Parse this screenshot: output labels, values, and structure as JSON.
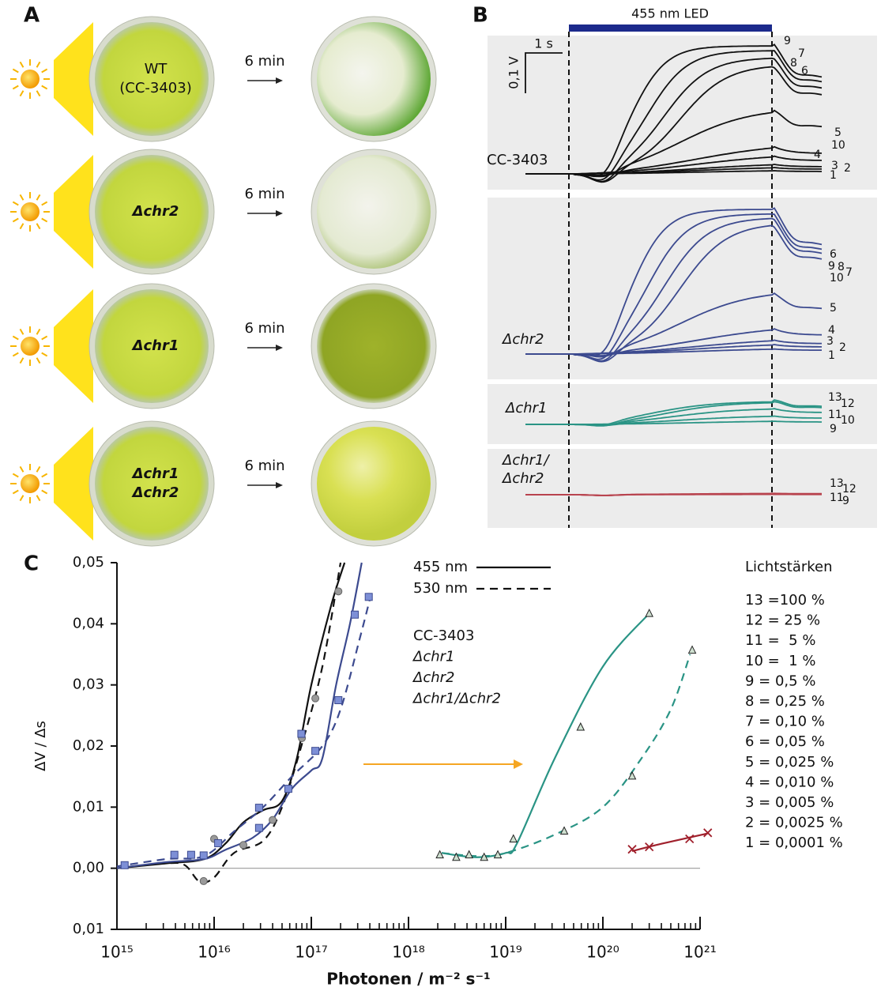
{
  "panel_a": {
    "label": "A",
    "rows": [
      {
        "strain": [
          "WT",
          "(CC-3403)"
        ],
        "color": "#111111",
        "italic": false,
        "duration": "6 min"
      },
      {
        "strain": [
          "Δchr2"
        ],
        "color": "#2b3f85",
        "italic": true,
        "duration": "6 min"
      },
      {
        "strain": [
          "Δchr1"
        ],
        "color": "#1f7f75",
        "italic": true,
        "duration": "6 min"
      },
      {
        "strain": [
          "Δchr1",
          "Δchr2"
        ],
        "color": "#8e1b2c",
        "italic": true,
        "duration": "6 min"
      }
    ]
  },
  "panel_b": {
    "label": "B",
    "stimulus": "455 nm LED",
    "scale_time": "1 s",
    "scale_voltage": "0,1 V",
    "groups": [
      {
        "name": [
          "CC-3403"
        ],
        "color": "#111111",
        "trace_labels": [
          "9",
          "7",
          "8",
          "6",
          "5",
          "10",
          "4",
          "3",
          "2",
          "1"
        ]
      },
      {
        "name": [
          "Δchr2"
        ],
        "color": "#3c4a8f",
        "trace_labels": [
          "6",
          "9",
          "8",
          "7",
          "10",
          "5",
          "4",
          "3",
          "2",
          "1"
        ]
      },
      {
        "name": [
          "Δchr1"
        ],
        "color": "#2a9485",
        "trace_labels": [
          "13",
          "12",
          "11",
          "10",
          "9"
        ]
      },
      {
        "name": [
          "Δchr1/",
          "Δchr2"
        ],
        "color": "#b8434e",
        "trace_labels": [
          "13",
          "12",
          "11",
          "9"
        ]
      }
    ]
  },
  "panel_c_label": "C",
  "chart_data": {
    "type": "scatter",
    "x_label": "Photonen / m⁻² s⁻¹",
    "y_label": "ΔV / Δs",
    "x_scale": "log",
    "xlim": [
      1000000000000000.0,
      1e+21
    ],
    "ylim": [
      -0.01,
      0.05
    ],
    "xticks": [
      {
        "value": 1000000000000000.0,
        "label": "10¹⁵"
      },
      {
        "value": 1e+16,
        "label": "10¹⁶"
      },
      {
        "value": 1e+17,
        "label": "10¹⁷"
      },
      {
        "value": 1e+18,
        "label": "10¹⁸"
      },
      {
        "value": 1e+19,
        "label": "10¹⁹"
      },
      {
        "value": 1e+20,
        "label": "10²⁰"
      },
      {
        "value": 1e+21,
        "label": "10²¹"
      }
    ],
    "yticks": [
      {
        "value": -0.01,
        "label": "0,01"
      },
      {
        "value": 0,
        "label": "0,00"
      },
      {
        "value": 0.01,
        "label": "0,01"
      },
      {
        "value": 0.02,
        "label": "0,02"
      },
      {
        "value": 0.03,
        "label": "0,03"
      },
      {
        "value": 0.04,
        "label": "0,04"
      },
      {
        "value": 0.05,
        "label": "0,05"
      }
    ],
    "zero_line": true,
    "line_legend": [
      {
        "name": "455 nm",
        "dash": false
      },
      {
        "name": "530 nm",
        "dash": true
      }
    ],
    "strain_legend": [
      {
        "name": "CC-3403",
        "color": "#222222"
      },
      {
        "name": "Δchr1",
        "color": "#2a9485"
      },
      {
        "name": "Δchr2",
        "color": "#3c4a8f"
      },
      {
        "name": "Δchr1/Δchr2",
        "color": "#a0202c"
      }
    ],
    "series": [
      {
        "marker": "circle",
        "color": "#9a9a9a",
        "x": [
          7800000000000000.0,
          1e+16,
          2e+16,
          4e+16,
          8e+16,
          1.1e+17,
          1.9e+17
        ],
        "values": [
          -0.0021,
          0.0048,
          0.0038,
          0.0079,
          0.0213,
          0.0278,
          0.0453
        ]
      },
      {
        "marker": "square",
        "color": "#7d8fd6",
        "x": [
          1200000000000000.0,
          3900000000000000.0,
          5800000000000000.0,
          7800000000000000.0,
          1.1e+16,
          2.9e+16,
          2.9e+16,
          5.8e+16,
          7.9e+16,
          1.1e+17,
          1.9e+17,
          2.8e+17,
          3.9e+17
        ],
        "values": [
          0.0005,
          0.0022,
          0.0022,
          0.0021,
          0.0041,
          0.0099,
          0.0066,
          0.013,
          0.022,
          0.0192,
          0.0275,
          0.0415,
          0.0444
        ]
      },
      {
        "marker": "triangle",
        "color": "#cfe0d0",
        "x": [
          2.1e+18,
          3.1e+18,
          4.2e+18,
          6e+18,
          8.3e+18,
          1.2e+19,
          4e+19,
          5.9e+19,
          2e+20,
          3e+20,
          8.3e+20
        ],
        "values": [
          0.0022,
          0.0018,
          0.0022,
          0.0018,
          0.0022,
          0.0048,
          0.0061,
          0.0231,
          0.0151,
          0.0417,
          0.0357
        ]
      },
      {
        "marker": "cross",
        "color": "#a0202c",
        "x": [
          2e+20,
          3e+20,
          7.8e+20,
          1.2e+21
        ],
        "values": [
          0.0031,
          0.0035,
          0.0048,
          0.0058
        ]
      }
    ],
    "curves": [
      {
        "color": "#111111",
        "dash": false,
        "x": [
          1000000000000000.0,
          3200000000000000.0,
          7900000000000000.0,
          1.3e+16,
          2e+16,
          3.2e+16,
          5e+16,
          7.1e+16,
          1e+17,
          1.6e+17,
          2.2e+17
        ],
        "values": [
          0,
          0.0008,
          0.0015,
          0.004,
          0.0075,
          0.0095,
          0.011,
          0.018,
          0.03,
          0.043,
          0.05
        ]
      },
      {
        "color": "#111111",
        "dash": true,
        "x": [
          1000000000000000.0,
          3200000000000000.0,
          5000000000000000.0,
          7100000000000000.0,
          1e+16,
          1.6e+16,
          3.2e+16,
          5e+16,
          7.9e+16,
          1.3e+17,
          2e+17
        ],
        "values": [
          0,
          0.0008,
          0.0005,
          -0.0022,
          -0.0015,
          0.0025,
          0.0045,
          0.01,
          0.02,
          0.033,
          0.05
        ]
      },
      {
        "color": "#3c4a8f",
        "dash": false,
        "x": [
          1000000000000000.0,
          3200000000000000.0,
          7900000000000000.0,
          1.3e+16,
          2.5e+16,
          4e+16,
          6.3e+16,
          1e+17,
          1.3e+17,
          1.8e+17,
          2.5e+17,
          3.3e+17
        ],
        "values": [
          0,
          0.001,
          0.0015,
          0.003,
          0.005,
          0.008,
          0.013,
          0.016,
          0.018,
          0.03,
          0.04,
          0.05
        ]
      },
      {
        "color": "#3c4a8f",
        "dash": true,
        "x": [
          1000000000000000.0,
          3200000000000000.0,
          7900000000000000.0,
          1.6e+16,
          3.2e+16,
          6.3e+16,
          1.3e+17,
          2e+17,
          3.2e+17,
          4e+17
        ],
        "values": [
          0.0003,
          0.0015,
          0.002,
          0.006,
          0.01,
          0.015,
          0.02,
          0.026,
          0.038,
          0.044
        ]
      },
      {
        "color": "#2a9485",
        "dash": false,
        "x": [
          2.2e+18,
          5e+18,
          1e+19,
          1.3e+19,
          3.2e+19,
          1e+20,
          3e+20
        ],
        "values": [
          0.0025,
          0.0018,
          0.0025,
          0.004,
          0.018,
          0.033,
          0.0417
        ]
      },
      {
        "color": "#2a9485",
        "dash": true,
        "x": [
          2.2e+18,
          5e+18,
          1e+19,
          3.2e+19,
          1e+20,
          2.5e+20,
          5e+20,
          7.9e+20
        ],
        "values": [
          0.0025,
          0.002,
          0.0025,
          0.0055,
          0.01,
          0.018,
          0.026,
          0.035
        ]
      },
      {
        "color": "#a0202c",
        "dash": false,
        "x": [
          2e+20,
          4e+20,
          1.2e+21
        ],
        "values": [
          0.0028,
          0.004,
          0.0057
        ]
      }
    ]
  },
  "intensity_legend": {
    "title": "Lichtstärken",
    "items": [
      "13 =100 %",
      "12 = 25 %",
      "11 =  5 %",
      "10 =  1 %",
      "9 = 0,5 %",
      "8 = 0,25 %",
      "7 = 0,10 %",
      "6 = 0,05 %",
      "5 = 0,025 %",
      "4 = 0,010 %",
      "3 = 0,005 %",
      "2 = 0,0025 %",
      "1 = 0,0001 %"
    ]
  }
}
